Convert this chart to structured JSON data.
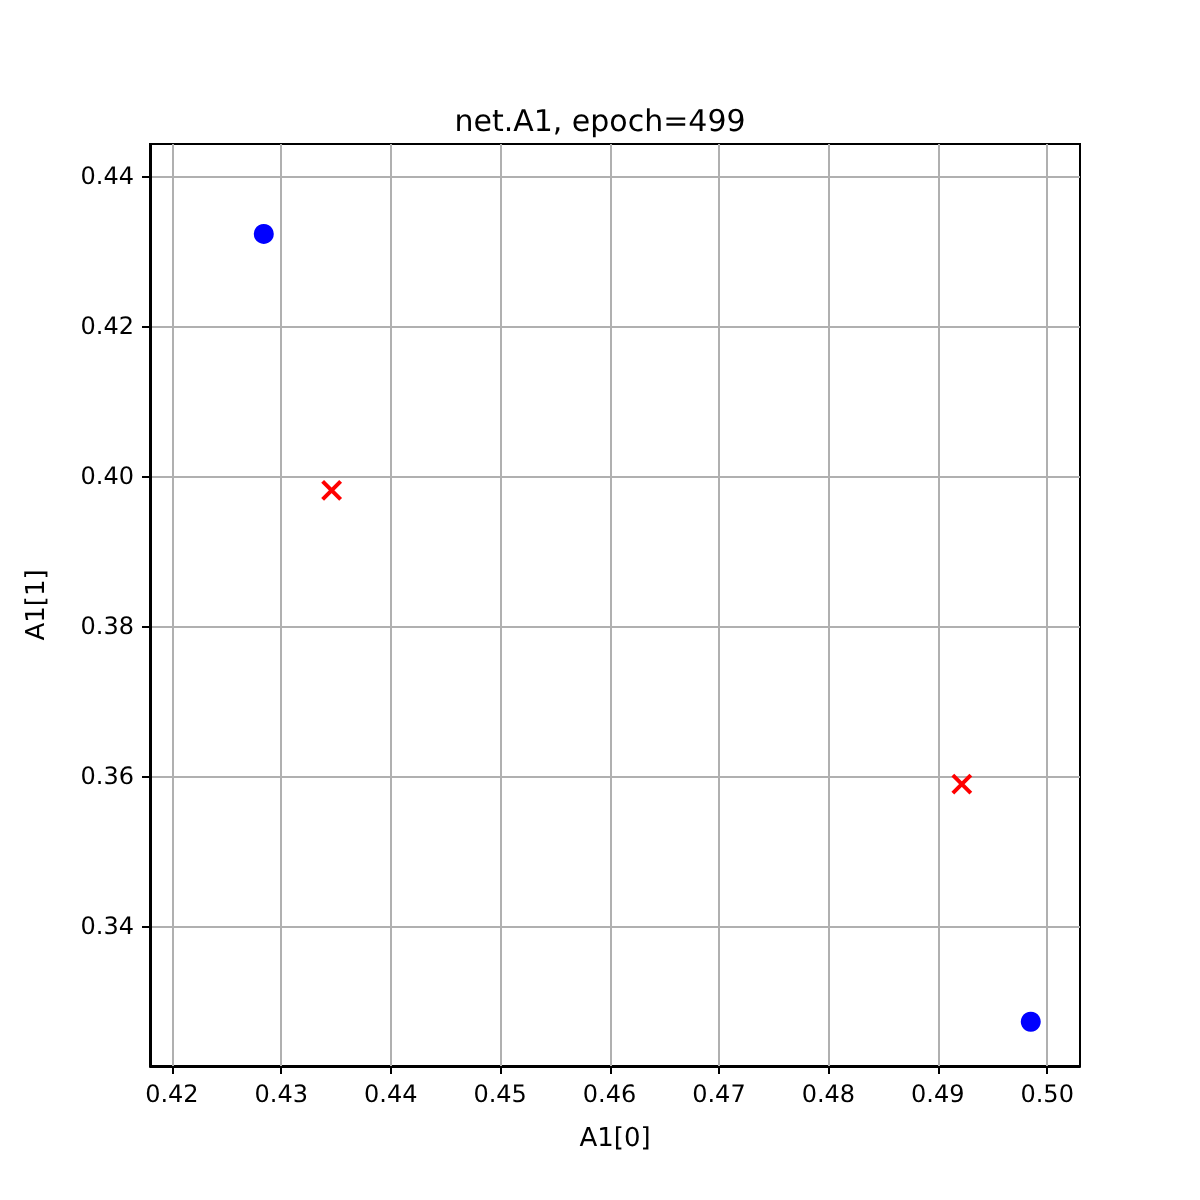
{
  "chart_data": {
    "type": "scatter",
    "title": "net.A1, epoch=499",
    "xlabel": "A1[0]",
    "ylabel": "A1[1]",
    "series": [
      {
        "color": "#0000ff",
        "marker": "circle",
        "x": [
          0.4284,
          0.4985
        ],
        "values": [
          0.4323,
          0.3272
        ]
      },
      {
        "color": "#ff0000",
        "marker": "cross",
        "x": [
          0.4346,
          0.4922
        ],
        "values": [
          0.3981,
          0.3589
        ]
      }
    ],
    "xlim": [
      0.418,
      0.503
    ],
    "ylim": [
      0.3213,
      0.4443
    ],
    "xticks": [
      0.42,
      0.43,
      0.44,
      0.45,
      0.46,
      0.47,
      0.48,
      0.49,
      {
        "value": 0.5,
        "label": "0.50"
      }
    ],
    "yticks": [
      0.34,
      0.36,
      0.38,
      {
        "value": 0.4,
        "label": "0.40"
      },
      0.42,
      0.44
    ],
    "grid": true
  }
}
